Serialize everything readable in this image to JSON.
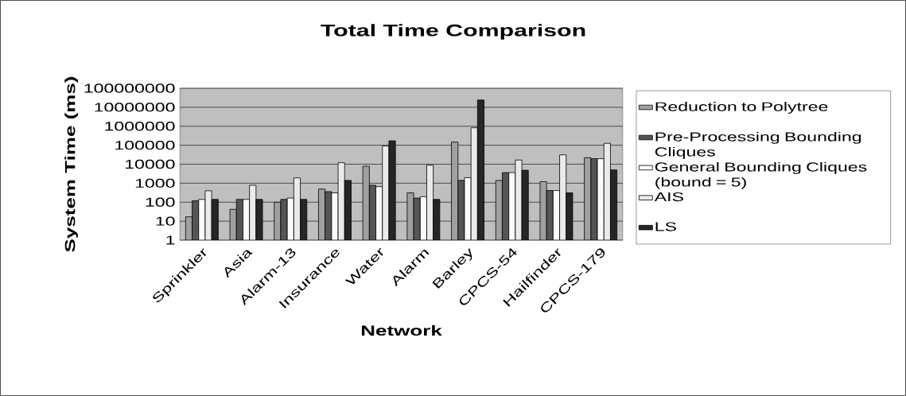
{
  "chart_data": {
    "type": "bar",
    "title": "Total Time Comparison",
    "xlabel": "Network",
    "ylabel": "System Time (ms)",
    "categories": [
      "Sprinkler",
      "Asia",
      "Alarm-13",
      "Insurance",
      "Water",
      "Alarm",
      "Barley",
      "CPCS-54",
      "Hailfinder",
      "CPCS-179"
    ],
    "series": [
      {
        "name": "Reduction to Polytree",
        "color": "#a0a0a0",
        "values": [
          17,
          42,
          100,
          490,
          7800,
          310,
          147000,
          1400,
          1200,
          22000
        ]
      },
      {
        "name": "Pre-Processing Bounding Cliques",
        "color": "#555555",
        "values": [
          120,
          140,
          140,
          360,
          780,
          165,
          1400,
          3600,
          410,
          19500
        ]
      },
      {
        "name": "General Bounding Cliques (bound = 5)",
        "color": "#fafafa",
        "values": [
          140,
          140,
          165,
          310,
          660,
          195,
          1950,
          3600,
          410,
          19500
        ]
      },
      {
        "name": "AIS",
        "color": "#eaeaea",
        "values": [
          400,
          780,
          1900,
          12000,
          91000,
          8800,
          830000,
          16600,
          31000,
          126000
        ]
      },
      {
        "name": "LS",
        "color": "#262626",
        "values": [
          140,
          140,
          140,
          1400,
          170000,
          140,
          24000000,
          4800,
          310,
          5000
        ]
      }
    ],
    "log": "y",
    "ylim": [
      1,
      100000000
    ],
    "yticks": [
      1,
      10,
      100,
      1000,
      10000,
      100000,
      1000000,
      10000000,
      100000000
    ],
    "grid": "y",
    "legend": "right"
  }
}
